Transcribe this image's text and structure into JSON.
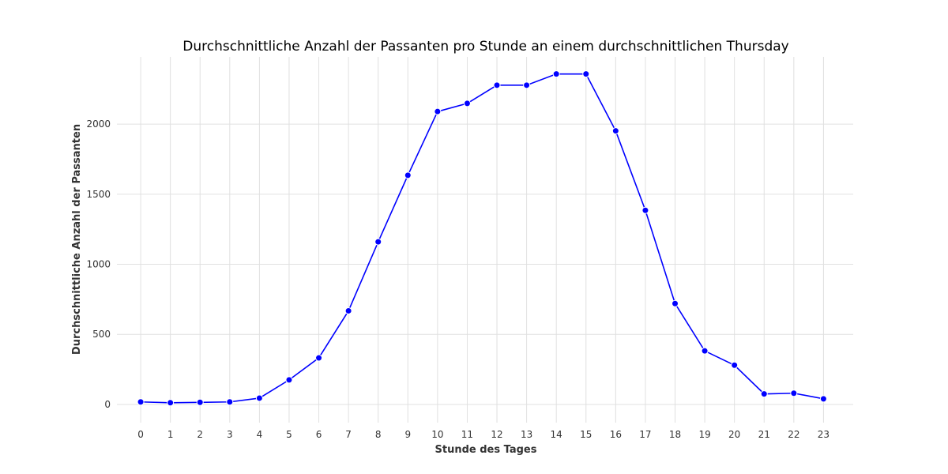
{
  "chart_data": {
    "type": "line",
    "title": "Durchschnittliche Anzahl der Passanten pro Stunde an einem durchschnittlichen Thursday",
    "xlabel": "Stunde des Tages",
    "ylabel": "Durchschnittliche Anzahl der Passanten",
    "x": [
      0,
      1,
      2,
      3,
      4,
      5,
      6,
      7,
      8,
      9,
      10,
      11,
      12,
      13,
      14,
      15,
      16,
      17,
      18,
      19,
      20,
      21,
      22,
      23
    ],
    "series": [
      {
        "values": [
          18,
          12,
          15,
          18,
          45,
          175,
          332,
          668,
          1160,
          1635,
          2090,
          2148,
          2278,
          2278,
          2358,
          2358,
          1952,
          1385,
          720,
          382,
          280,
          75,
          80,
          40
        ],
        "color": "#0000ff"
      }
    ],
    "xticks": [
      "0",
      "1",
      "2",
      "3",
      "4",
      "5",
      "6",
      "7",
      "8",
      "9",
      "10",
      "11",
      "12",
      "13",
      "14",
      "15",
      "16",
      "17",
      "18",
      "19",
      "20",
      "21",
      "22",
      "23"
    ],
    "yticks": [
      0,
      500,
      1000,
      1500,
      2000
    ],
    "ytick_labels": [
      "0",
      "500",
      "1000",
      "1500",
      "2000"
    ],
    "xlim": [
      -0.8,
      24.0
    ],
    "ylim": [
      -130,
      2480
    ],
    "grid": true,
    "legend": "none"
  }
}
